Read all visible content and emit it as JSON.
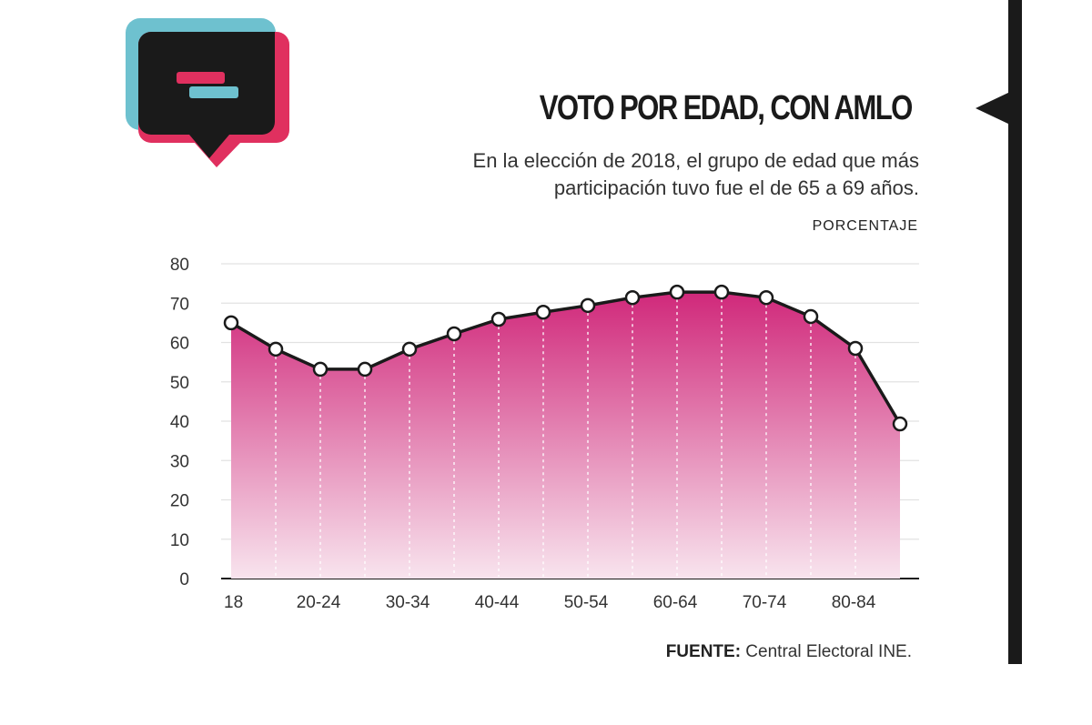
{
  "header": {
    "title": "VOTO POR EDAD, CON AMLO",
    "subtitle_line1": "En la elección de 2018, el grupo de edad que más",
    "subtitle_line2": "participación tuvo fue el de 65 a 69 años.",
    "unit": "PORCENTAJE"
  },
  "footer": {
    "source_label": "FUENTE:",
    "source_text": " Central Electoral INE."
  },
  "logo": {
    "icon": "speech-bubble-icon",
    "colors": [
      "#6ec1cf",
      "#e0305f",
      "#1a1a1a"
    ]
  },
  "chart_data": {
    "type": "area",
    "title": "VOTO POR EDAD, CON AMLO",
    "ylabel": "PORCENTAJE",
    "x_tick_labels": [
      "18",
      "",
      "20-24",
      "",
      "30-34",
      "",
      "40-44",
      "",
      "50-54",
      "",
      "60-64",
      "",
      "70-74",
      "",
      "80-84",
      ""
    ],
    "values": [
      65.0,
      58.3,
      53.2,
      53.2,
      58.3,
      62.2,
      65.9,
      67.7,
      69.4,
      71.4,
      72.8,
      72.8,
      71.4,
      66.6,
      58.5,
      39.3
    ],
    "ylim": [
      0,
      80
    ],
    "yticks": [
      0,
      10,
      20,
      30,
      40,
      50,
      60,
      70,
      80
    ],
    "grid": true,
    "colors": {
      "fill_top": "#d0287a",
      "fill_bottom": "#f8e4ee",
      "line": "#1a1a1a",
      "grid": "#e2e2e2"
    }
  }
}
